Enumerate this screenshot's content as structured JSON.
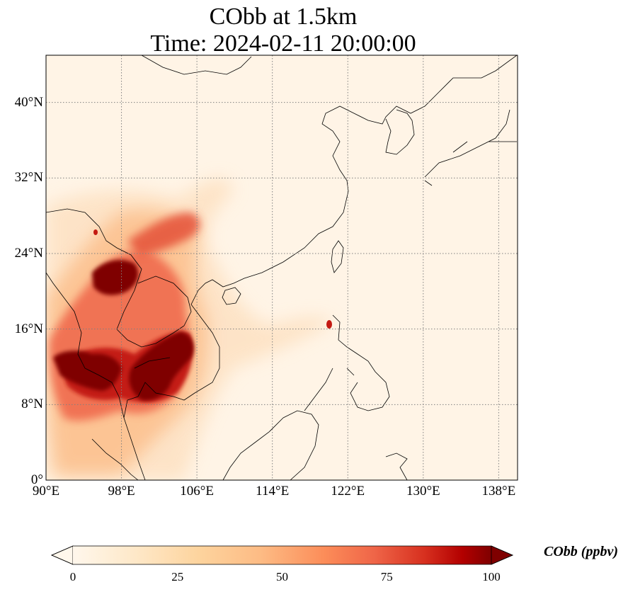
{
  "title": {
    "line1": "CObb at 1.5km",
    "line2": "Time: 2024-02-11 20:00:00"
  },
  "map": {
    "extent": {
      "lon": [
        90,
        140
      ],
      "lat": [
        0,
        45
      ]
    },
    "gridlines": "dotted",
    "field": "CObb",
    "colormap": "OrRd",
    "colors": {
      "low": "#fff7ec",
      "mid": "#fdbb84",
      "high": "#7f0000",
      "coast": "#000000",
      "grid": "#808080"
    }
  },
  "x_ticks": [
    {
      "value": 90,
      "label": "90°E"
    },
    {
      "value": 98,
      "label": "98°E"
    },
    {
      "value": 106,
      "label": "106°E"
    },
    {
      "value": 114,
      "label": "114°E"
    },
    {
      "value": 122,
      "label": "122°E"
    },
    {
      "value": 130,
      "label": "130°E"
    },
    {
      "value": 138,
      "label": "138°E"
    }
  ],
  "y_ticks": [
    {
      "value": 0,
      "label": "0°"
    },
    {
      "value": 8,
      "label": "8°N"
    },
    {
      "value": 16,
      "label": "16°N"
    },
    {
      "value": 24,
      "label": "24°N"
    },
    {
      "value": 32,
      "label": "32°N"
    },
    {
      "value": 40,
      "label": "40°N"
    }
  ],
  "colorbar": {
    "label": "CObb (ppbv)",
    "min": 0,
    "max": 100,
    "extend": "both",
    "ticks": [
      {
        "value": 0,
        "label": "0"
      },
      {
        "value": 25,
        "label": "25"
      },
      {
        "value": 50,
        "label": "50"
      },
      {
        "value": 75,
        "label": "75"
      },
      {
        "value": 100,
        "label": "100"
      }
    ]
  }
}
